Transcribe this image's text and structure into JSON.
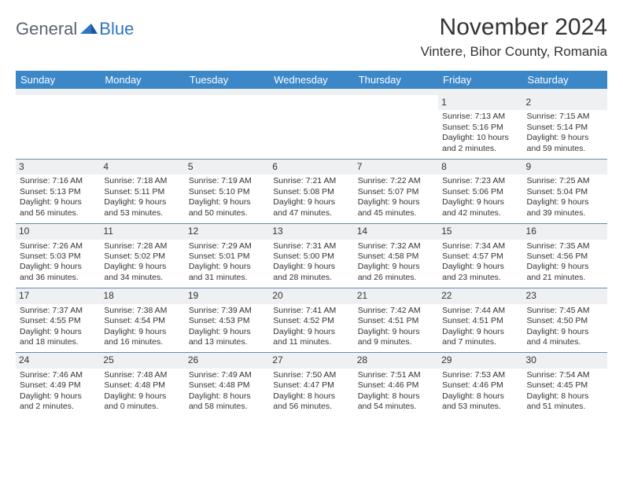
{
  "logo": {
    "general": "General",
    "blue": "Blue"
  },
  "title": "November 2024",
  "location": "Vintere, Bihor County, Romania",
  "colors": {
    "header_bg": "#3b87c8",
    "header_text": "#ffffff",
    "daynum_bg": "#eef0f2",
    "text": "#333333",
    "rule": "#6a8aa8",
    "logo_general": "#5a6470",
    "logo_blue": "#2f75c2"
  },
  "dow": [
    "Sunday",
    "Monday",
    "Tuesday",
    "Wednesday",
    "Thursday",
    "Friday",
    "Saturday"
  ],
  "weeks": [
    [
      null,
      null,
      null,
      null,
      null,
      {
        "n": "1",
        "sunrise": "Sunrise: 7:13 AM",
        "sunset": "Sunset: 5:16 PM",
        "day1": "Daylight: 10 hours",
        "day2": "and 2 minutes."
      },
      {
        "n": "2",
        "sunrise": "Sunrise: 7:15 AM",
        "sunset": "Sunset: 5:14 PM",
        "day1": "Daylight: 9 hours",
        "day2": "and 59 minutes."
      }
    ],
    [
      {
        "n": "3",
        "sunrise": "Sunrise: 7:16 AM",
        "sunset": "Sunset: 5:13 PM",
        "day1": "Daylight: 9 hours",
        "day2": "and 56 minutes."
      },
      {
        "n": "4",
        "sunrise": "Sunrise: 7:18 AM",
        "sunset": "Sunset: 5:11 PM",
        "day1": "Daylight: 9 hours",
        "day2": "and 53 minutes."
      },
      {
        "n": "5",
        "sunrise": "Sunrise: 7:19 AM",
        "sunset": "Sunset: 5:10 PM",
        "day1": "Daylight: 9 hours",
        "day2": "and 50 minutes."
      },
      {
        "n": "6",
        "sunrise": "Sunrise: 7:21 AM",
        "sunset": "Sunset: 5:08 PM",
        "day1": "Daylight: 9 hours",
        "day2": "and 47 minutes."
      },
      {
        "n": "7",
        "sunrise": "Sunrise: 7:22 AM",
        "sunset": "Sunset: 5:07 PM",
        "day1": "Daylight: 9 hours",
        "day2": "and 45 minutes."
      },
      {
        "n": "8",
        "sunrise": "Sunrise: 7:23 AM",
        "sunset": "Sunset: 5:06 PM",
        "day1": "Daylight: 9 hours",
        "day2": "and 42 minutes."
      },
      {
        "n": "9",
        "sunrise": "Sunrise: 7:25 AM",
        "sunset": "Sunset: 5:04 PM",
        "day1": "Daylight: 9 hours",
        "day2": "and 39 minutes."
      }
    ],
    [
      {
        "n": "10",
        "sunrise": "Sunrise: 7:26 AM",
        "sunset": "Sunset: 5:03 PM",
        "day1": "Daylight: 9 hours",
        "day2": "and 36 minutes."
      },
      {
        "n": "11",
        "sunrise": "Sunrise: 7:28 AM",
        "sunset": "Sunset: 5:02 PM",
        "day1": "Daylight: 9 hours",
        "day2": "and 34 minutes."
      },
      {
        "n": "12",
        "sunrise": "Sunrise: 7:29 AM",
        "sunset": "Sunset: 5:01 PM",
        "day1": "Daylight: 9 hours",
        "day2": "and 31 minutes."
      },
      {
        "n": "13",
        "sunrise": "Sunrise: 7:31 AM",
        "sunset": "Sunset: 5:00 PM",
        "day1": "Daylight: 9 hours",
        "day2": "and 28 minutes."
      },
      {
        "n": "14",
        "sunrise": "Sunrise: 7:32 AM",
        "sunset": "Sunset: 4:58 PM",
        "day1": "Daylight: 9 hours",
        "day2": "and 26 minutes."
      },
      {
        "n": "15",
        "sunrise": "Sunrise: 7:34 AM",
        "sunset": "Sunset: 4:57 PM",
        "day1": "Daylight: 9 hours",
        "day2": "and 23 minutes."
      },
      {
        "n": "16",
        "sunrise": "Sunrise: 7:35 AM",
        "sunset": "Sunset: 4:56 PM",
        "day1": "Daylight: 9 hours",
        "day2": "and 21 minutes."
      }
    ],
    [
      {
        "n": "17",
        "sunrise": "Sunrise: 7:37 AM",
        "sunset": "Sunset: 4:55 PM",
        "day1": "Daylight: 9 hours",
        "day2": "and 18 minutes."
      },
      {
        "n": "18",
        "sunrise": "Sunrise: 7:38 AM",
        "sunset": "Sunset: 4:54 PM",
        "day1": "Daylight: 9 hours",
        "day2": "and 16 minutes."
      },
      {
        "n": "19",
        "sunrise": "Sunrise: 7:39 AM",
        "sunset": "Sunset: 4:53 PM",
        "day1": "Daylight: 9 hours",
        "day2": "and 13 minutes."
      },
      {
        "n": "20",
        "sunrise": "Sunrise: 7:41 AM",
        "sunset": "Sunset: 4:52 PM",
        "day1": "Daylight: 9 hours",
        "day2": "and 11 minutes."
      },
      {
        "n": "21",
        "sunrise": "Sunrise: 7:42 AM",
        "sunset": "Sunset: 4:51 PM",
        "day1": "Daylight: 9 hours",
        "day2": "and 9 minutes."
      },
      {
        "n": "22",
        "sunrise": "Sunrise: 7:44 AM",
        "sunset": "Sunset: 4:51 PM",
        "day1": "Daylight: 9 hours",
        "day2": "and 7 minutes."
      },
      {
        "n": "23",
        "sunrise": "Sunrise: 7:45 AM",
        "sunset": "Sunset: 4:50 PM",
        "day1": "Daylight: 9 hours",
        "day2": "and 4 minutes."
      }
    ],
    [
      {
        "n": "24",
        "sunrise": "Sunrise: 7:46 AM",
        "sunset": "Sunset: 4:49 PM",
        "day1": "Daylight: 9 hours",
        "day2": "and 2 minutes."
      },
      {
        "n": "25",
        "sunrise": "Sunrise: 7:48 AM",
        "sunset": "Sunset: 4:48 PM",
        "day1": "Daylight: 9 hours",
        "day2": "and 0 minutes."
      },
      {
        "n": "26",
        "sunrise": "Sunrise: 7:49 AM",
        "sunset": "Sunset: 4:48 PM",
        "day1": "Daylight: 8 hours",
        "day2": "and 58 minutes."
      },
      {
        "n": "27",
        "sunrise": "Sunrise: 7:50 AM",
        "sunset": "Sunset: 4:47 PM",
        "day1": "Daylight: 8 hours",
        "day2": "and 56 minutes."
      },
      {
        "n": "28",
        "sunrise": "Sunrise: 7:51 AM",
        "sunset": "Sunset: 4:46 PM",
        "day1": "Daylight: 8 hours",
        "day2": "and 54 minutes."
      },
      {
        "n": "29",
        "sunrise": "Sunrise: 7:53 AM",
        "sunset": "Sunset: 4:46 PM",
        "day1": "Daylight: 8 hours",
        "day2": "and 53 minutes."
      },
      {
        "n": "30",
        "sunrise": "Sunrise: 7:54 AM",
        "sunset": "Sunset: 4:45 PM",
        "day1": "Daylight: 8 hours",
        "day2": "and 51 minutes."
      }
    ]
  ]
}
